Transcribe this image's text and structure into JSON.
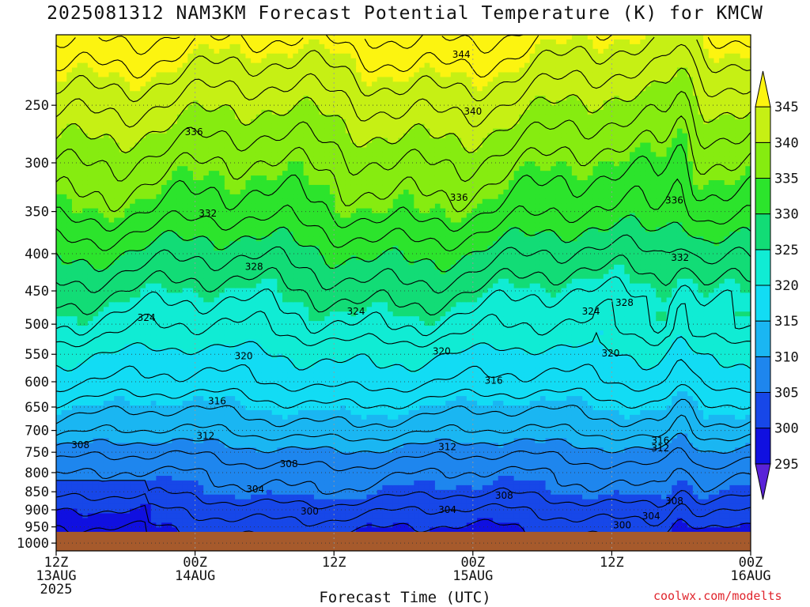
{
  "chart_data": {
    "type": "heatmap",
    "title": "2025081312 NAM3KM Forecast Potential Temperature (K) for KMCW",
    "xlabel": "Forecast Time (UTC)",
    "ylabel": "",
    "x_ticks": [
      {
        "hour": 0,
        "line1": "12Z",
        "line2": "13AUG",
        "line3": "2025"
      },
      {
        "hour": 12,
        "line1": "00Z",
        "line2": "14AUG",
        "line3": ""
      },
      {
        "hour": 24,
        "line1": "12Z",
        "line2": "",
        "line3": ""
      },
      {
        "hour": 36,
        "line1": "00Z",
        "line2": "15AUG",
        "line3": ""
      },
      {
        "hour": 48,
        "line1": "12Z",
        "line2": "",
        "line3": ""
      },
      {
        "hour": 60,
        "line1": "00Z",
        "line2": "16AUG",
        "line3": ""
      }
    ],
    "xlim_hours": [
      0,
      60
    ],
    "y_axis": "pressure (hPa), log scale, inverted",
    "y_ticks": [
      250,
      300,
      350,
      400,
      450,
      500,
      550,
      600,
      650,
      700,
      750,
      800,
      850,
      900,
      950,
      1000
    ],
    "ylim": [
      200,
      1025
    ],
    "ground_level_hpa": 965,
    "grid": true,
    "colorbar": {
      "labels": [
        "295",
        "300",
        "305",
        "310",
        "315",
        "320",
        "325",
        "330",
        "335",
        "340",
        "345"
      ],
      "bins": [
        {
          "from": null,
          "to": 295,
          "color": "#5a22d8"
        },
        {
          "from": 295,
          "to": 300,
          "color": "#1010e0"
        },
        {
          "from": 300,
          "to": 305,
          "color": "#1747e8"
        },
        {
          "from": 305,
          "to": 310,
          "color": "#1e86ee"
        },
        {
          "from": 310,
          "to": 315,
          "color": "#1ab6f2"
        },
        {
          "from": 315,
          "to": 320,
          "color": "#12dcf4"
        },
        {
          "from": 320,
          "to": 325,
          "color": "#10ecd4"
        },
        {
          "from": 325,
          "to": 330,
          "color": "#12dc76"
        },
        {
          "from": 330,
          "to": 335,
          "color": "#2ce42c"
        },
        {
          "from": 335,
          "to": 340,
          "color": "#86ec10"
        },
        {
          "from": 340,
          "to": 345,
          "color": "#c6f014"
        },
        {
          "from": 345,
          "to": null,
          "color": "#fcf410"
        }
      ]
    },
    "ground_color": "#a65a2c",
    "contour_interval_k": 2,
    "profile_k_at_pressure": [
      {
        "p": 200,
        "theta": 347.5
      },
      {
        "p": 250,
        "theta": 341.5
      },
      {
        "p": 300,
        "theta": 337.0
      },
      {
        "p": 350,
        "theta": 333.8
      },
      {
        "p": 400,
        "theta": 329.5
      },
      {
        "p": 450,
        "theta": 326.0
      },
      {
        "p": 500,
        "theta": 323.0
      },
      {
        "p": 550,
        "theta": 320.0
      },
      {
        "p": 600,
        "theta": 318.0
      },
      {
        "p": 650,
        "theta": 315.0
      },
      {
        "p": 700,
        "theta": 312.5
      },
      {
        "p": 750,
        "theta": 309.0
      },
      {
        "p": 800,
        "theta": 306.5
      },
      {
        "p": 850,
        "theta": 305.0
      },
      {
        "p": 900,
        "theta": 302.5
      },
      {
        "p": 950,
        "theta": 300.5
      },
      {
        "p": 1025,
        "theta": 298.0
      }
    ],
    "contour_labels": [
      {
        "text": "344",
        "hour": 35.0,
        "p": 213
      },
      {
        "text": "340",
        "hour": 36.0,
        "p": 255
      },
      {
        "text": "336",
        "hour": 11.9,
        "p": 272
      },
      {
        "text": "336",
        "hour": 34.8,
        "p": 335
      },
      {
        "text": "336",
        "hour": 53.4,
        "p": 338
      },
      {
        "text": "332",
        "hour": 13.1,
        "p": 352
      },
      {
        "text": "332",
        "hour": 53.9,
        "p": 405
      },
      {
        "text": "328",
        "hour": 17.1,
        "p": 417
      },
      {
        "text": "328",
        "hour": 49.1,
        "p": 467
      },
      {
        "text": "324",
        "hour": 7.8,
        "p": 490
      },
      {
        "text": "324",
        "hour": 25.9,
        "p": 480
      },
      {
        "text": "324",
        "hour": 46.2,
        "p": 480
      },
      {
        "text": "320",
        "hour": 16.2,
        "p": 553
      },
      {
        "text": "320",
        "hour": 33.3,
        "p": 545
      },
      {
        "text": "320",
        "hour": 47.9,
        "p": 548
      },
      {
        "text": "316",
        "hour": 37.8,
        "p": 598
      },
      {
        "text": "316",
        "hour": 13.9,
        "p": 638
      },
      {
        "text": "316",
        "hour": 52.2,
        "p": 723
      },
      {
        "text": "312",
        "hour": 12.9,
        "p": 712
      },
      {
        "text": "312",
        "hour": 33.8,
        "p": 738
      },
      {
        "text": "312",
        "hour": 52.2,
        "p": 740
      },
      {
        "text": "308",
        "hour": 2.1,
        "p": 733
      },
      {
        "text": "308",
        "hour": 20.1,
        "p": 778
      },
      {
        "text": "308",
        "hour": 38.7,
        "p": 860
      },
      {
        "text": "308",
        "hour": 53.4,
        "p": 875
      },
      {
        "text": "304",
        "hour": 17.2,
        "p": 843
      },
      {
        "text": "304",
        "hour": 33.8,
        "p": 900
      },
      {
        "text": "304",
        "hour": 51.4,
        "p": 918
      },
      {
        "text": "300",
        "hour": 21.9,
        "p": 905
      },
      {
        "text": "300",
        "hour": 48.9,
        "p": 945
      }
    ]
  },
  "credit": "coolwx.com/modelts"
}
